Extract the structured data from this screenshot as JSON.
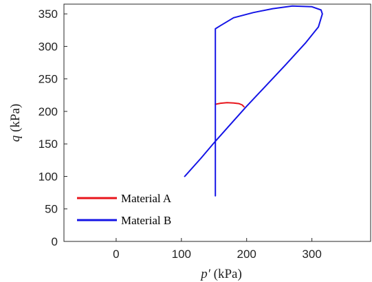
{
  "chart_data": {
    "type": "line",
    "xlabel": {
      "symbol": "p′",
      "unit": " (kPa)"
    },
    "ylabel": {
      "symbol": "q",
      "unit": " (kPa)"
    },
    "xlim": [
      -80,
      390
    ],
    "ylim": [
      0,
      365
    ],
    "xticks": [
      0,
      100,
      200,
      300
    ],
    "yticks": [
      0,
      50,
      100,
      150,
      200,
      250,
      300,
      350
    ],
    "grid": false,
    "legend_position": "bottom-left",
    "series": [
      {
        "name": "Material A",
        "color": "#e8141b",
        "x": [
          152,
          160,
          170,
          180,
          188,
          193,
          196
        ],
        "y": [
          211,
          212.5,
          213.5,
          213,
          212,
          210,
          207
        ]
      },
      {
        "name": "Material B",
        "color": "#1414e6",
        "x": [
          105,
          130,
          152,
          175,
          200,
          230,
          260,
          290,
          310,
          316,
          314,
          300,
          270,
          240,
          210,
          180,
          160,
          152,
          152,
          152,
          152
        ],
        "y": [
          100,
          128,
          154,
          180,
          208,
          240,
          272,
          305,
          330,
          350,
          356,
          361,
          362,
          358,
          352,
          344,
          332,
          327,
          230,
          150,
          70
        ]
      }
    ]
  }
}
